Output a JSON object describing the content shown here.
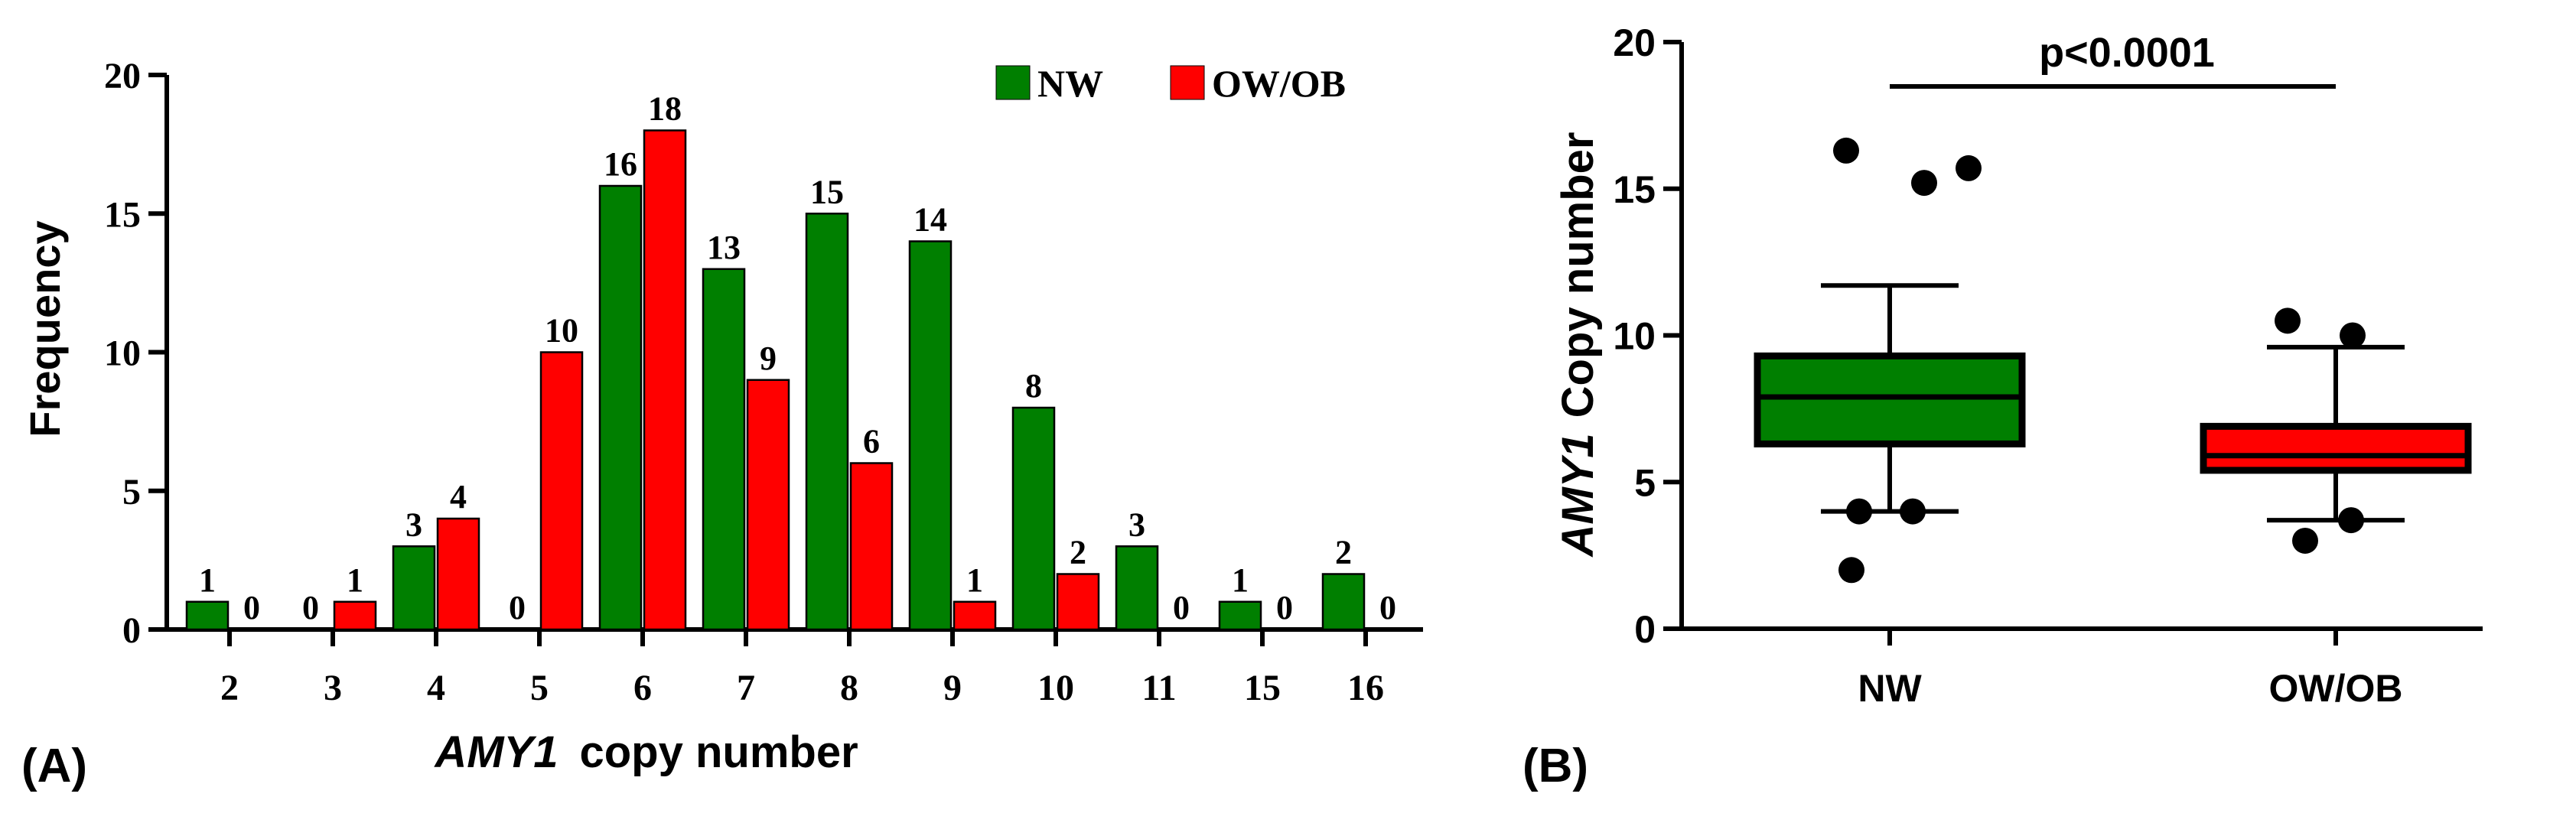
{
  "colors": {
    "nw": "#007f00",
    "owob": "#ff0000",
    "axis": "#000000"
  },
  "panels": {
    "a_label": "(A)",
    "b_label": "(B)"
  },
  "chart_data": [
    {
      "type": "bar",
      "categories": [
        "2",
        "3",
        "4",
        "5",
        "6",
        "7",
        "8",
        "9",
        "10",
        "11",
        "15",
        "16"
      ],
      "series": [
        {
          "name": "NW",
          "values": [
            1,
            0,
            3,
            0,
            16,
            13,
            15,
            14,
            8,
            3,
            1,
            2
          ]
        },
        {
          "name": "OW/OB",
          "values": [
            0,
            1,
            4,
            10,
            18,
            9,
            6,
            1,
            2,
            0,
            0,
            0
          ]
        }
      ],
      "ylabel": "Frequency",
      "xlabel_italic": "AMY1",
      "xlabel_rest": "copy number",
      "ylim": [
        0,
        20
      ],
      "yticks": [
        "0",
        "5",
        "10",
        "15",
        "20"
      ],
      "legend": {
        "position": "top-right",
        "items": [
          "NW",
          "OW/OB"
        ]
      }
    },
    {
      "type": "box",
      "categories": [
        "NW",
        "OW/OB"
      ],
      "ylabel_italic": "AMY1",
      "ylabel_rest": "Copy number",
      "ylim": [
        0,
        20
      ],
      "yticks": [
        "0",
        "5",
        "10",
        "15",
        "20"
      ],
      "annotation": "p<0.0001",
      "boxes": [
        {
          "name": "NW",
          "whisker_low": 4.0,
          "q1": 6.3,
          "median": 7.9,
          "q3": 9.3,
          "whisker_high": 11.7,
          "outliers": [
            16.3,
            15.2,
            15.7,
            4.0,
            4.0,
            2.0
          ]
        },
        {
          "name": "OW/OB",
          "whisker_low": 3.7,
          "q1": 5.4,
          "median": 5.9,
          "q3": 6.9,
          "whisker_high": 9.6,
          "outliers": [
            10.5,
            10.0,
            3.0,
            3.7
          ]
        }
      ]
    }
  ]
}
